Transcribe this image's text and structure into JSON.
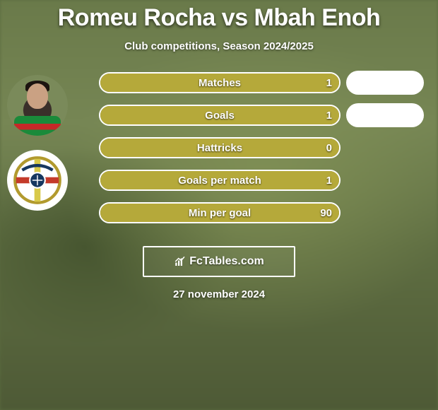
{
  "title": "Romeu Rocha vs Mbah Enoh",
  "subtitle": "Club competitions, Season 2024/2025",
  "date": "27 november 2024",
  "brand": "FcTables.com",
  "colors": {
    "bar_fill": "#b5a93a",
    "bar_border": "#ffffff",
    "pill_bg": "#ffffff",
    "text": "#ffffff"
  },
  "stats": [
    {
      "label": "Matches",
      "value": "1",
      "fill_pct": 100,
      "show_pill": true
    },
    {
      "label": "Goals",
      "value": "1",
      "fill_pct": 100,
      "show_pill": true
    },
    {
      "label": "Hattricks",
      "value": "0",
      "fill_pct": 100,
      "show_pill": false
    },
    {
      "label": "Goals per match",
      "value": "1",
      "fill_pct": 100,
      "show_pill": false
    },
    {
      "label": "Min per goal",
      "value": "90",
      "fill_pct": 100,
      "show_pill": false
    }
  ],
  "club_badge": {
    "ring_color": "#b29a2e",
    "cross_v": "#d8c94a",
    "cross_h": "#c43a2a",
    "center_bg": "#16375f",
    "center_ring": "#ffffff"
  }
}
